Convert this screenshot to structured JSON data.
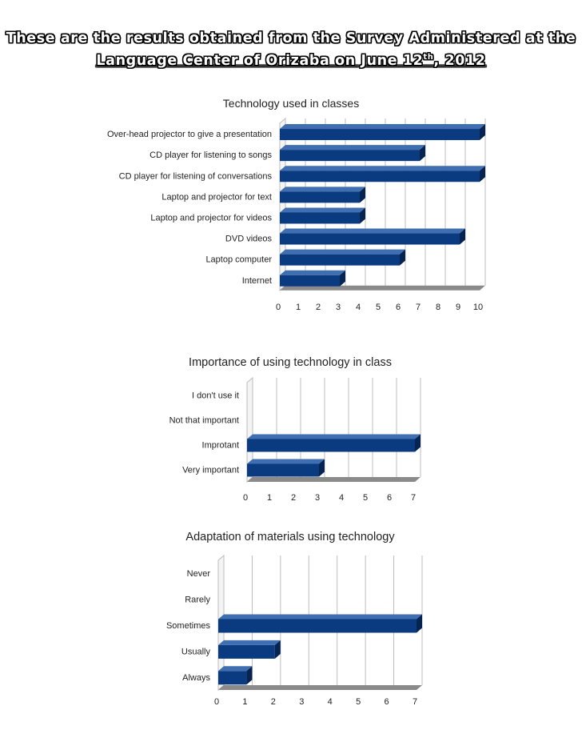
{
  "header": {
    "title_line1": "These are the results obtained from the Survey Administered at the",
    "title_line2_main": "Language Center of Orizaba on June 12",
    "title_line2_sup": "th",
    "title_line2_end": ", 2012"
  },
  "colors": {
    "bar": "#0a3a80",
    "bar_top": "#3f6fb0",
    "bar_end": "#062452",
    "grid": "#bdbdbd",
    "floor": "#8a8a8a"
  },
  "chart_data": [
    {
      "type": "bar",
      "orientation": "horizontal",
      "title": "Technology used in classes",
      "categories": [
        "Over-head projector to give a presentation",
        "CD player for listening to songs",
        "CD player for listening of conversations",
        "Laptop and projector for text",
        "Laptop and projector for videos",
        "DVD videos",
        "Laptop computer",
        "Internet"
      ],
      "values": [
        10,
        7,
        10,
        4,
        4,
        9,
        6,
        3
      ],
      "xlim": [
        0,
        10
      ],
      "ticks": [
        0,
        1,
        2,
        3,
        4,
        5,
        6,
        7,
        8,
        9,
        10
      ]
    },
    {
      "type": "bar",
      "orientation": "horizontal",
      "title": "Importance of using technology in class",
      "categories": [
        "I don't use it",
        "Not that important",
        "Improtant",
        "Very important"
      ],
      "values": [
        0,
        0,
        7,
        3
      ],
      "xlim": [
        0,
        7
      ],
      "ticks": [
        0,
        1,
        2,
        3,
        4,
        5,
        6,
        7
      ]
    },
    {
      "type": "bar",
      "orientation": "horizontal",
      "title": "Adaptation of materials using technology",
      "categories": [
        "Never",
        "Rarely",
        "Sometimes",
        "Usually",
        "Always"
      ],
      "values": [
        0,
        0,
        7,
        2,
        1
      ],
      "xlim": [
        0,
        7
      ],
      "ticks": [
        0,
        1,
        2,
        3,
        4,
        5,
        6,
        7
      ]
    }
  ]
}
